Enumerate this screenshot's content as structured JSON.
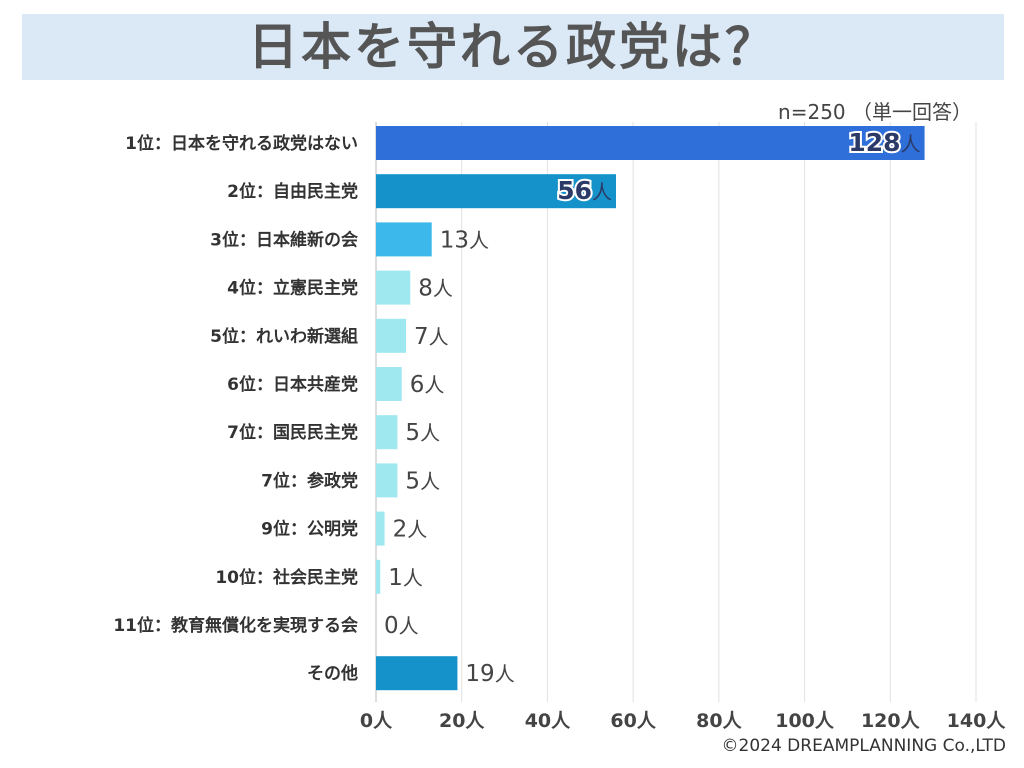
{
  "header": {
    "title": "日本を守れる政党は？",
    "sample_note": "n=250 （単一回答）"
  },
  "footer": {
    "copyright": "©2024 DREAMPLANNING Co.,LTD"
  },
  "chart_data": {
    "type": "bar",
    "orientation": "horizontal",
    "title": "日本を守れる政党は？",
    "unit": "人",
    "xlim": [
      0,
      140
    ],
    "x_ticks": [
      "0人",
      "20人",
      "40人",
      "60人",
      "80人",
      "100人",
      "120人",
      "140人"
    ],
    "grid": true,
    "categories": [
      "1位：日本を守れる政党はない",
      "2位：自由民主党",
      "3位：日本維新の会",
      "4位：立憲民主党",
      "5位：れいわ新選組",
      "6位：日本共産党",
      "7位：国民民主党",
      "7位：参政党",
      "9位：公明党",
      "10位：社会民主党",
      "11位：教育無償化を実現する会",
      "その他"
    ],
    "values": [
      128,
      56,
      13,
      8,
      7,
      6,
      5,
      5,
      2,
      1,
      0,
      19
    ],
    "bar_colors": [
      "#2e6fd9",
      "#1592c9",
      "#3cb9ea",
      "#9fe8f0",
      "#9fe8f0",
      "#9fe8f0",
      "#9fe8f0",
      "#9fe8f0",
      "#9fe8f0",
      "#9fe8f0",
      "#9fe8f0",
      "#1592c9"
    ]
  }
}
